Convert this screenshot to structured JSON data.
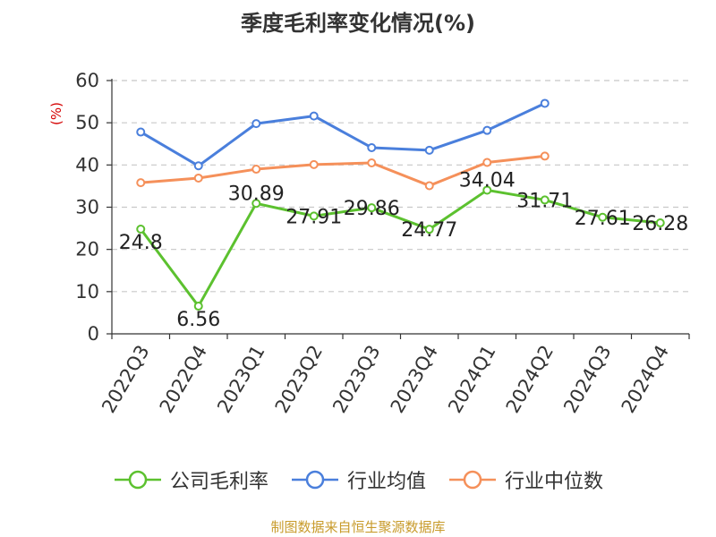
{
  "chart_data": {
    "type": "line",
    "title": "季度毛利率变化情况(%)",
    "ylabel": "(%)",
    "xlabel": "",
    "ylim": [
      0,
      60
    ],
    "yticks": [
      0,
      10,
      20,
      30,
      40,
      50,
      60
    ],
    "grid": true,
    "legend_position": "bottom",
    "categories": [
      "2022Q3",
      "2022Q4",
      "2023Q1",
      "2023Q2",
      "2023Q3",
      "2023Q4",
      "2024Q1",
      "2024Q2",
      "2024Q3",
      "2024Q4"
    ],
    "series": [
      {
        "name": "公司毛利率",
        "color": "#5cc12f",
        "values": [
          24.8,
          6.56,
          30.89,
          27.91,
          29.86,
          24.77,
          34.04,
          31.71,
          27.61,
          26.28
        ],
        "labels": [
          "24.8",
          "6.56",
          "30.89",
          "27.91",
          "29.86",
          "24.77",
          "34.04",
          "31.71",
          "27.61",
          "26.28"
        ]
      },
      {
        "name": "行业均值",
        "color": "#4a7fdc",
        "values": [
          47.8,
          39.8,
          49.8,
          51.6,
          44.1,
          43.5,
          48.2,
          54.6,
          null,
          null
        ]
      },
      {
        "name": "行业中位数",
        "color": "#f5905a",
        "values": [
          35.8,
          36.9,
          39.0,
          40.1,
          40.5,
          35.1,
          40.6,
          42.1,
          null,
          null
        ]
      }
    ],
    "source": "制图数据来自恒生聚源数据库"
  }
}
